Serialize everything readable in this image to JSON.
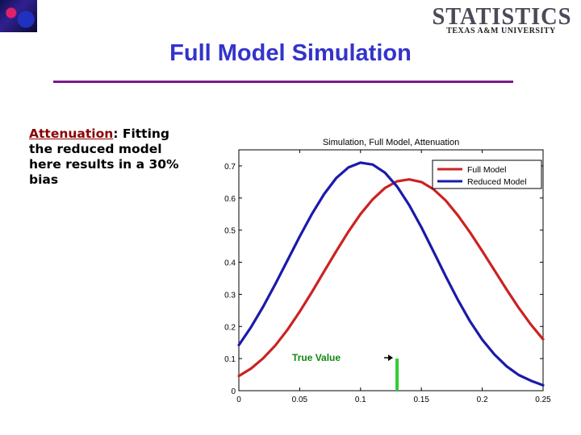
{
  "slide": {
    "title": "Full Model Simulation",
    "logo_main": "STATISTICS",
    "logo_sub": "TEXAS A&M UNIVERSITY",
    "body_keyword": "Attenuation",
    "body_rest": ": Fitting the reduced model here results in a 30% bias"
  },
  "colors": {
    "title": "#3333cc",
    "rule": "#7a1a8c",
    "full_model": "#cc2222",
    "reduced_model": "#1a1aaa",
    "true_value": "#33cc33"
  },
  "chart_data": {
    "type": "line",
    "title": "Simulation, Full Model, Attenuation",
    "xlim": [
      0,
      0.25
    ],
    "ylim": [
      0,
      0.75
    ],
    "x_ticks": [
      0,
      0.05,
      0.1,
      0.15,
      0.2,
      0.25
    ],
    "x_tick_labels": [
      "0",
      "0.05",
      "0.1",
      "0.15",
      "0.2",
      "0.25"
    ],
    "y_ticks": [
      0,
      0.1,
      0.2,
      0.3,
      0.4,
      0.5,
      0.6,
      0.7
    ],
    "y_tick_labels": [
      "0",
      "0.1",
      "0.2",
      "0.3",
      "0.4",
      "0.5",
      "0.6",
      "0.7"
    ],
    "legend_position": "top-right",
    "series": [
      {
        "name": "Full Model",
        "color": "#cc2222",
        "x": [
          0,
          0.01,
          0.02,
          0.03,
          0.04,
          0.05,
          0.06,
          0.07,
          0.08,
          0.09,
          0.1,
          0.11,
          0.12,
          0.13,
          0.14,
          0.15,
          0.16,
          0.17,
          0.18,
          0.19,
          0.2,
          0.21,
          0.22,
          0.23,
          0.24,
          0.25
        ],
        "y": [
          0.046,
          0.069,
          0.101,
          0.141,
          0.19,
          0.246,
          0.307,
          0.371,
          0.434,
          0.495,
          0.55,
          0.596,
          0.631,
          0.652,
          0.658,
          0.65,
          0.627,
          0.592,
          0.546,
          0.493,
          0.435,
          0.375,
          0.315,
          0.258,
          0.206,
          0.16
        ]
      },
      {
        "name": "Reduced Model",
        "color": "#1a1aaa",
        "x": [
          0,
          0.01,
          0.02,
          0.03,
          0.04,
          0.05,
          0.06,
          0.07,
          0.08,
          0.09,
          0.1,
          0.11,
          0.12,
          0.13,
          0.14,
          0.15,
          0.16,
          0.17,
          0.18,
          0.19,
          0.2,
          0.21,
          0.22,
          0.23,
          0.24,
          0.25
        ],
        "y": [
          0.142,
          0.198,
          0.262,
          0.332,
          0.406,
          0.48,
          0.55,
          0.612,
          0.662,
          0.695,
          0.71,
          0.704,
          0.679,
          0.636,
          0.578,
          0.509,
          0.433,
          0.356,
          0.283,
          0.216,
          0.159,
          0.113,
          0.076,
          0.049,
          0.031,
          0.017
        ]
      }
    ],
    "annotation": {
      "text": "True Value",
      "x": 0.13,
      "y_from": 0,
      "y_to": 0.1
    }
  }
}
